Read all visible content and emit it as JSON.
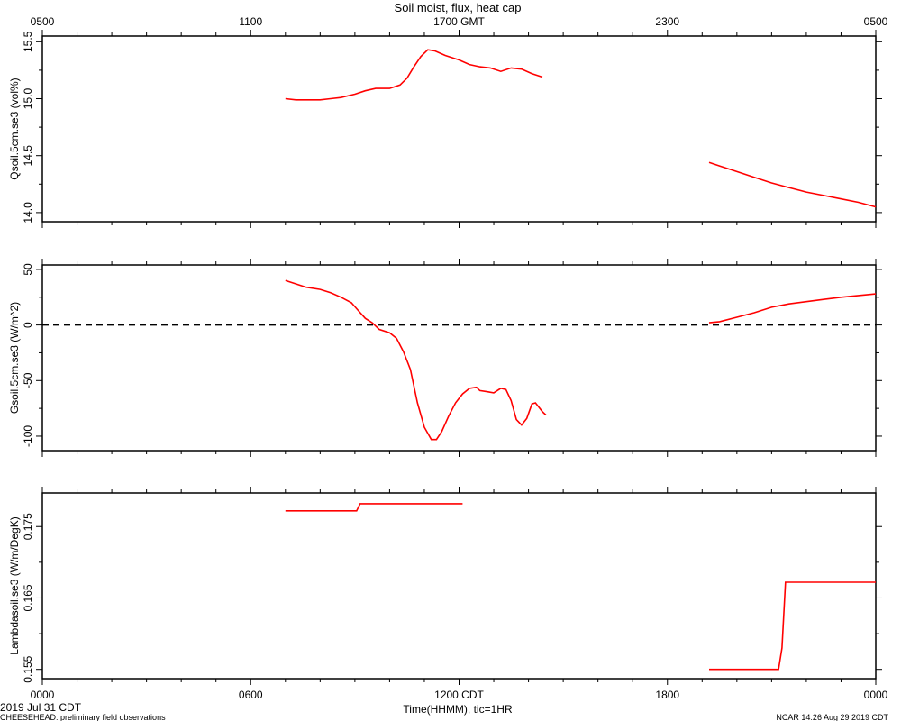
{
  "title": "Soil moist, flux, heat cap",
  "top_axis": {
    "ticks": [
      "0500",
      "1100",
      "1700 GMT",
      "2300",
      "0500"
    ]
  },
  "bottom_axis": {
    "ticks": [
      "0000",
      "0600",
      "1200 CDT",
      "1800",
      "0000"
    ],
    "label": "Time(HHMM), tic=1HR"
  },
  "footer": {
    "date": "2019 Jul 31 CDT",
    "project": "CHEESEHEAD: preliminary field observations",
    "stamp": "NCAR 14:26 Aug 29 2019 CDT"
  },
  "colors": {
    "series": "#ff0000",
    "axes": "#000000",
    "zero_line": "#000000"
  },
  "chart_data": [
    {
      "type": "line",
      "ylabel": "Qsoil.5cm.se3 (vol%)",
      "ylim": [
        13.92,
        15.55
      ],
      "yticks": [
        14.0,
        14.5,
        15.0,
        15.5
      ],
      "ytick_labels": [
        "14.0",
        "14.5",
        "15.0",
        "15.5"
      ],
      "xlim": [
        0,
        24
      ],
      "x_units": "hours CDT",
      "series": [
        {
          "values": [
            [
              7.0,
              15.0
            ],
            [
              7.3,
              14.99
            ],
            [
              7.6,
              14.99
            ],
            [
              8.0,
              14.99
            ],
            [
              8.3,
              15.0
            ],
            [
              8.6,
              15.01
            ],
            [
              9.0,
              15.04
            ],
            [
              9.3,
              15.07
            ],
            [
              9.6,
              15.09
            ],
            [
              10.0,
              15.09
            ],
            [
              10.3,
              15.12
            ],
            [
              10.5,
              15.18
            ],
            [
              10.7,
              15.28
            ],
            [
              10.9,
              15.37
            ],
            [
              11.1,
              15.43
            ],
            [
              11.3,
              15.42
            ],
            [
              11.6,
              15.38
            ],
            [
              12.0,
              15.34
            ],
            [
              12.3,
              15.3
            ],
            [
              12.6,
              15.28
            ],
            [
              12.9,
              15.27
            ],
            [
              13.2,
              15.24
            ],
            [
              13.5,
              15.27
            ],
            [
              13.8,
              15.26
            ],
            [
              14.1,
              15.22
            ],
            [
              14.4,
              15.19
            ]
          ]
        },
        {
          "values": [
            [
              19.2,
              14.44
            ],
            [
              19.5,
              14.41
            ],
            [
              20.0,
              14.36
            ],
            [
              20.5,
              14.31
            ],
            [
              21.0,
              14.26
            ],
            [
              21.5,
              14.22
            ],
            [
              22.0,
              14.18
            ],
            [
              22.5,
              14.15
            ],
            [
              23.0,
              14.12
            ],
            [
              23.5,
              14.09
            ],
            [
              24.0,
              14.05
            ]
          ]
        }
      ]
    },
    {
      "type": "line",
      "ylabel": "Gsoil.5cm.se3 (W/m^2)",
      "ylim": [
        -113,
        54
      ],
      "yticks": [
        -100,
        -50,
        0,
        50
      ],
      "ytick_labels": [
        "-100",
        "-50",
        "0",
        "50"
      ],
      "xlim": [
        0,
        24
      ],
      "x_units": "hours CDT",
      "zero_line": true,
      "series": [
        {
          "values": [
            [
              7.0,
              40
            ],
            [
              7.3,
              37
            ],
            [
              7.6,
              34
            ],
            [
              8.0,
              32
            ],
            [
              8.3,
              29
            ],
            [
              8.6,
              25
            ],
            [
              8.9,
              20
            ],
            [
              9.1,
              13
            ],
            [
              9.3,
              6
            ],
            [
              9.5,
              2
            ],
            [
              9.7,
              -4
            ],
            [
              10.0,
              -7
            ],
            [
              10.2,
              -12
            ],
            [
              10.4,
              -24
            ],
            [
              10.6,
              -40
            ],
            [
              10.8,
              -70
            ],
            [
              11.0,
              -92
            ],
            [
              11.2,
              -103
            ],
            [
              11.35,
              -103
            ],
            [
              11.5,
              -96
            ],
            [
              11.7,
              -82
            ],
            [
              11.9,
              -70
            ],
            [
              12.1,
              -62
            ],
            [
              12.3,
              -57
            ],
            [
              12.5,
              -56
            ],
            [
              12.6,
              -59
            ],
            [
              12.8,
              -60
            ],
            [
              13.0,
              -61
            ],
            [
              13.2,
              -57
            ],
            [
              13.35,
              -58
            ],
            [
              13.5,
              -68
            ],
            [
              13.65,
              -85
            ],
            [
              13.8,
              -90
            ],
            [
              13.95,
              -84
            ],
            [
              14.1,
              -71
            ],
            [
              14.2,
              -70
            ],
            [
              14.4,
              -78
            ],
            [
              14.5,
              -81
            ]
          ]
        },
        {
          "values": [
            [
              19.2,
              2
            ],
            [
              19.5,
              3
            ],
            [
              20.0,
              7
            ],
            [
              20.5,
              11
            ],
            [
              21.0,
              16
            ],
            [
              21.5,
              19
            ],
            [
              22.0,
              21
            ],
            [
              22.5,
              23
            ],
            [
              23.0,
              25
            ],
            [
              23.5,
              26.5
            ],
            [
              24.0,
              28
            ]
          ]
        }
      ]
    },
    {
      "type": "line",
      "ylabel": "Lambdasoil.se3 (W/m/DegK)",
      "ylim": [
        0.1537,
        0.1797
      ],
      "yticks": [
        0.155,
        0.165,
        0.175
      ],
      "ytick_labels": [
        "0.155",
        "0.165",
        "0.175"
      ],
      "xlim": [
        0,
        24
      ],
      "x_units": "hours CDT",
      "series": [
        {
          "values": [
            [
              7.0,
              0.1772
            ],
            [
              9.05,
              0.1772
            ],
            [
              9.15,
              0.1782
            ],
            [
              9.3,
              0.1782
            ],
            [
              12.1,
              0.1782
            ]
          ]
        },
        {
          "values": [
            [
              19.2,
              0.155
            ],
            [
              21.2,
              0.155
            ],
            [
              21.3,
              0.158
            ],
            [
              21.4,
              0.1672
            ],
            [
              24.0,
              0.1672
            ]
          ]
        }
      ]
    }
  ]
}
